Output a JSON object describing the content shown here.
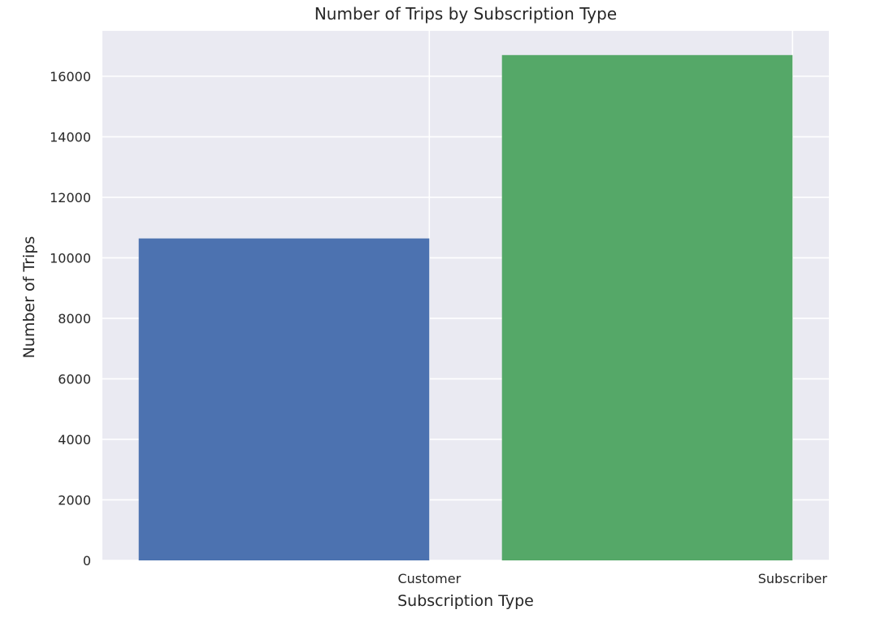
{
  "chart_data": {
    "type": "bar",
    "title": "Number of Trips by Subscription Type",
    "xlabel": "Subscription Type",
    "ylabel": "Number of Trips",
    "categories": [
      "Customer",
      "Subscriber"
    ],
    "values": [
      10640,
      16700
    ],
    "colors": [
      "#4c72b0",
      "#55a868"
    ],
    "ylim": [
      0,
      17500
    ],
    "yticks": [
      0,
      2000,
      4000,
      6000,
      8000,
      10000,
      12000,
      14000,
      16000
    ],
    "xticks": [
      1,
      2
    ],
    "xtick_labels": [
      "Customer",
      "Subscriber"
    ],
    "bar_centers": [
      0.6,
      1.6
    ],
    "bar_width": 0.8,
    "xlim": [
      0.1,
      2.1
    ],
    "grid": true,
    "background": "#eaeaf2",
    "grid_color": "#ffffff"
  }
}
